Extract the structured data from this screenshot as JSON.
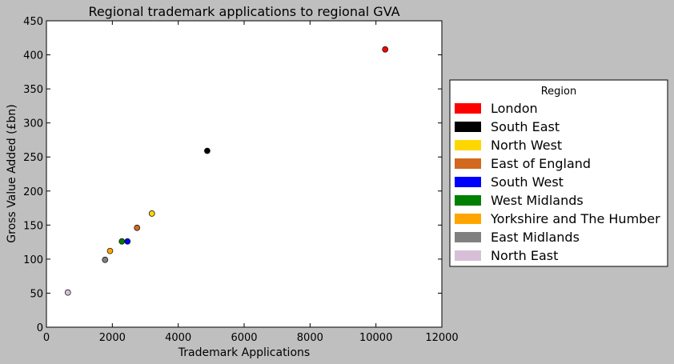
{
  "chart_data": {
    "type": "scatter",
    "title": "Regional trademark applications to regional GVA",
    "xlabel": "Trademark Applications",
    "ylabel": "Gross Value Added (£bn)",
    "xlim": [
      0,
      12000
    ],
    "ylim": [
      0,
      450
    ],
    "xticks": [
      0,
      2000,
      4000,
      6000,
      8000,
      10000,
      12000
    ],
    "yticks": [
      0,
      50,
      100,
      150,
      200,
      250,
      300,
      350,
      400,
      450
    ],
    "grid": false,
    "legend": {
      "title": "Region",
      "placement": "outside-right"
    },
    "series": [
      {
        "name": "London",
        "color": "#ff0000",
        "x": 10280,
        "y": 408
      },
      {
        "name": "South East",
        "color": "#000000",
        "x": 4880,
        "y": 259
      },
      {
        "name": "North West",
        "color": "#ffd700",
        "x": 3200,
        "y": 167
      },
      {
        "name": "East of England",
        "color": "#d2691e",
        "x": 2750,
        "y": 146
      },
      {
        "name": "South West",
        "color": "#0000ff",
        "x": 2460,
        "y": 126
      },
      {
        "name": "West Midlands",
        "color": "#008000",
        "x": 2290,
        "y": 126
      },
      {
        "name": "Yorkshire and The Humber",
        "color": "#ffa500",
        "x": 1930,
        "y": 112
      },
      {
        "name": "East Midlands",
        "color": "#808080",
        "x": 1780,
        "y": 99
      },
      {
        "name": "North East",
        "color": "#d8bfd8",
        "x": 650,
        "y": 51
      }
    ]
  }
}
